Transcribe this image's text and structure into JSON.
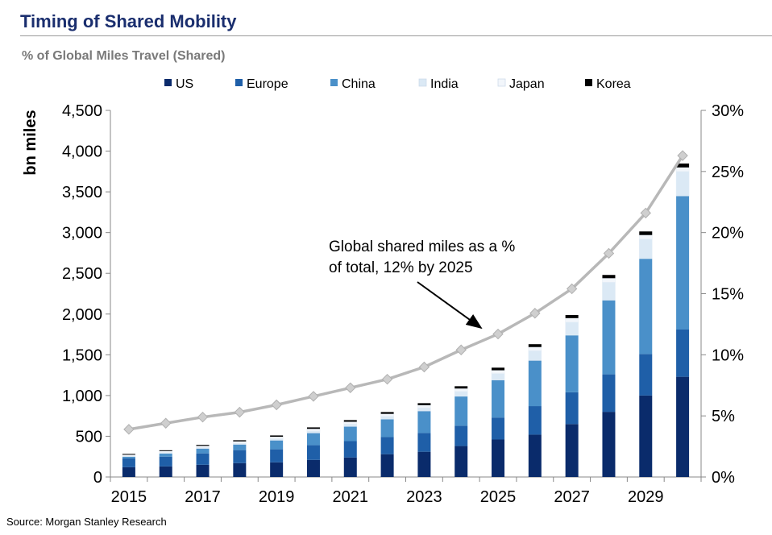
{
  "header": {
    "title": "Timing of Shared Mobility",
    "subtitle": "% of Global Miles Travel (Shared)"
  },
  "footer": {
    "source": "Source: Morgan Stanley Research"
  },
  "colors": {
    "US": "#0a2b6b",
    "Europe": "#1f5fa8",
    "China": "#4a90c9",
    "India": "#dbe9f5",
    "Japan": "#f2f6fb",
    "Korea": "#000000",
    "line": "#b8b8b8",
    "marker": "#cfcfcf"
  },
  "chart_data": {
    "type": "bar",
    "stacked": true,
    "title": "Timing of Shared Mobility",
    "ylabel": "bn miles",
    "ylim": [
      0,
      4500
    ],
    "y_ticks": [
      "0",
      "500",
      "1,000",
      "1,500",
      "2,000",
      "2,500",
      "3,000",
      "3,500",
      "4,000",
      "4,500"
    ],
    "y2lim": [
      0,
      30
    ],
    "y2_ticks": [
      "0%",
      "5%",
      "10%",
      "15%",
      "20%",
      "25%",
      "30%"
    ],
    "categories": [
      "2015",
      "2016",
      "2017",
      "2018",
      "2019",
      "2020",
      "2021",
      "2022",
      "2023",
      "2024",
      "2025",
      "2026",
      "2027",
      "2028",
      "2029",
      "2030"
    ],
    "x_tick_labels": [
      "2015",
      "2017",
      "2019",
      "2021",
      "2023",
      "2025",
      "2027",
      "2029"
    ],
    "series": [
      {
        "name": "US",
        "values": [
          120,
          130,
          150,
          170,
          180,
          210,
          240,
          280,
          310,
          380,
          460,
          520,
          650,
          800,
          1000,
          1230
        ]
      },
      {
        "name": "Europe",
        "values": [
          110,
          120,
          140,
          160,
          160,
          180,
          200,
          210,
          230,
          250,
          270,
          350,
          390,
          460,
          510,
          580
        ]
      },
      {
        "name": "China",
        "values": [
          20,
          40,
          60,
          70,
          110,
          150,
          180,
          220,
          270,
          360,
          460,
          560,
          700,
          910,
          1170,
          1640
        ]
      },
      {
        "name": "India",
        "values": [
          8,
          10,
          12,
          15,
          20,
          25,
          30,
          35,
          40,
          60,
          80,
          120,
          160,
          220,
          240,
          300
        ]
      },
      {
        "name": "Japan",
        "values": [
          15,
          18,
          20,
          22,
          24,
          26,
          28,
          30,
          32,
          36,
          40,
          45,
          50,
          50,
          50,
          50
        ]
      },
      {
        "name": "Korea",
        "values": [
          10,
          10,
          12,
          14,
          16,
          18,
          20,
          22,
          24,
          28,
          32,
          35,
          38,
          40,
          44,
          48
        ]
      }
    ],
    "line": {
      "name": "Global shared miles as a % of total",
      "axis": "right",
      "values": [
        3.9,
        4.4,
        4.9,
        5.3,
        5.9,
        6.6,
        7.3,
        8.0,
        9.0,
        10.4,
        11.7,
        13.4,
        15.4,
        18.3,
        21.6,
        26.3
      ]
    },
    "annotation": "Global shared miles as a % of total, 12% by 2025",
    "legend": [
      "US",
      "Europe",
      "China",
      "India",
      "Japan",
      "Korea"
    ],
    "legend_position": "top",
    "grid": false
  }
}
